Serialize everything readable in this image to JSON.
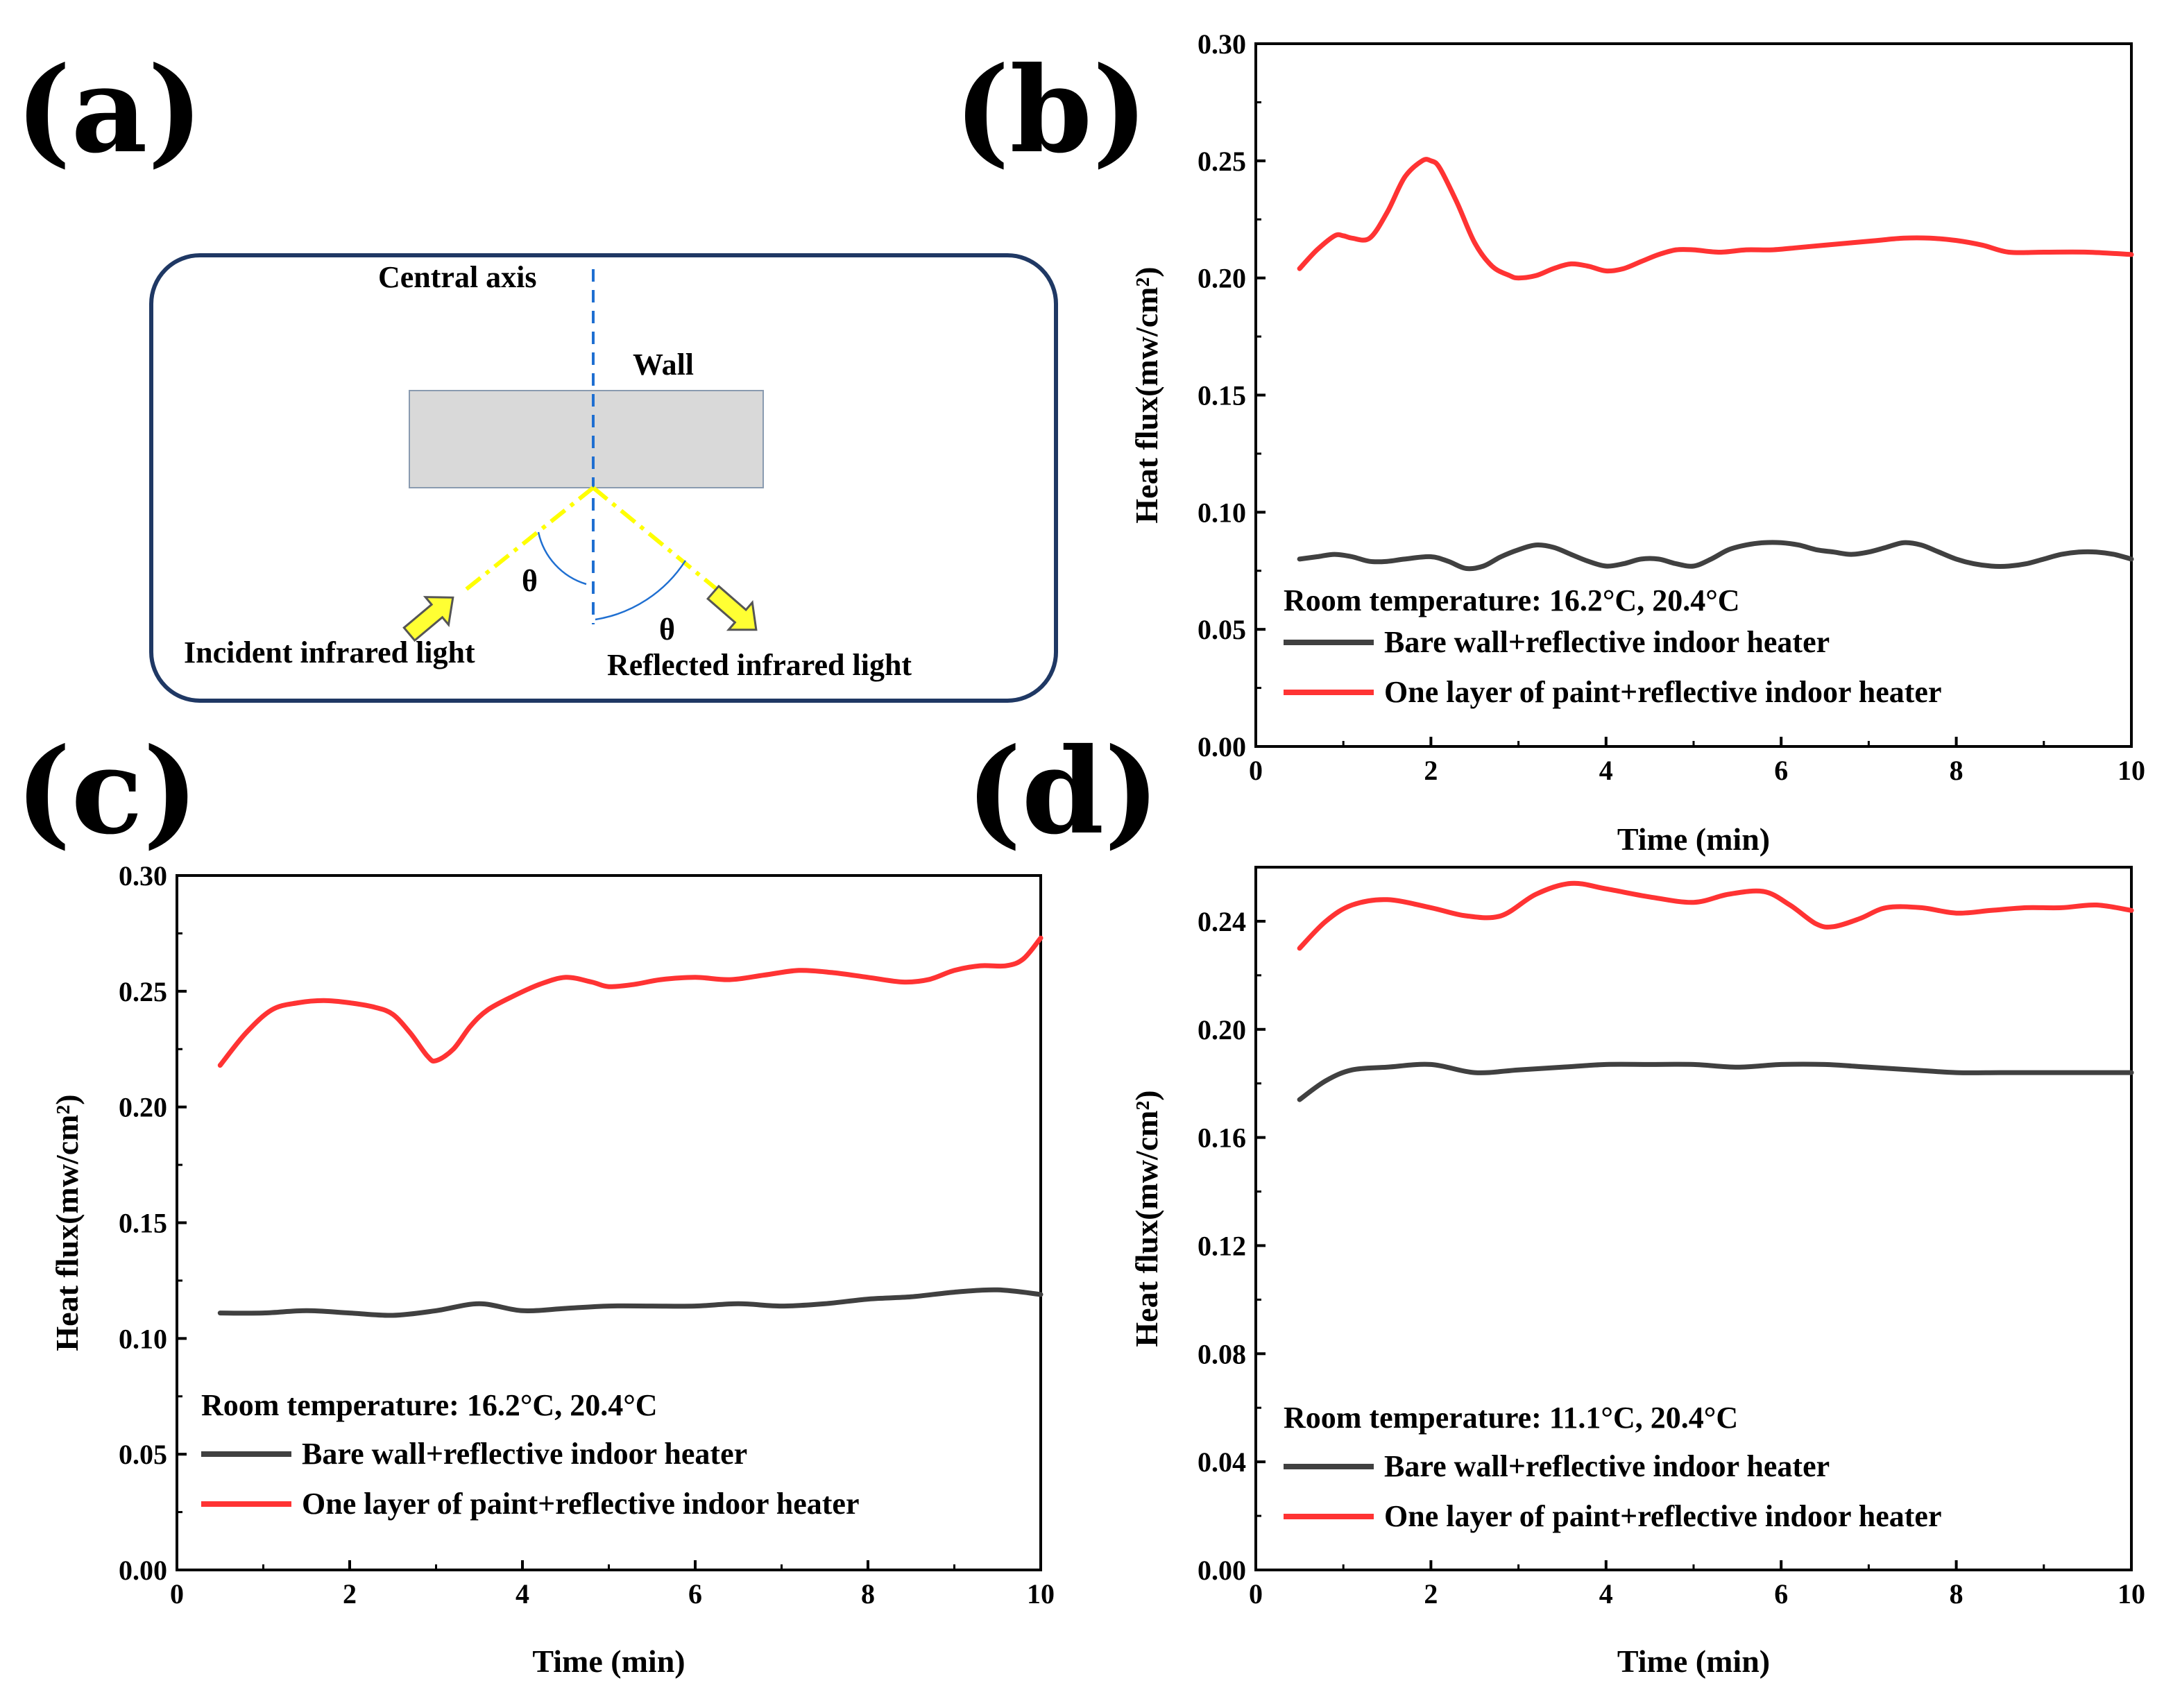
{
  "panel_letters": {
    "a": "(a)",
    "b": "(b)",
    "c": "(c)",
    "d": "(d)"
  },
  "diagram": {
    "central_axis": "Central axis",
    "wall": "Wall",
    "theta": "θ",
    "incident": "Incident infrared light",
    "reflected": "Reflected infrared light",
    "colors": {
      "frame": "#1f3864",
      "wall_fill": "#d9d9d9",
      "axis": "#1f6fd1",
      "ray": "#ffff00",
      "arrow": "#e6e600"
    }
  },
  "chart_data": [
    {
      "id": "b",
      "type": "line",
      "xlabel": "Time (min)",
      "ylabel": "Heat flux(mw/cm²)",
      "xlim": [
        0,
        10
      ],
      "ylim": [
        0,
        0.3
      ],
      "xticks": [
        "0",
        "2",
        "4",
        "6",
        "8",
        "10"
      ],
      "yticks": [
        "0.00",
        "0.05",
        "0.10",
        "0.15",
        "0.20",
        "0.25",
        "0.30"
      ],
      "annotation": "Room temperature: 16.2°C, 20.4°C",
      "series": [
        {
          "name": "Bare wall+reflective indoor heater",
          "color": "#404040",
          "x": [
            0.5,
            0.7,
            0.9,
            1.1,
            1.3,
            1.5,
            1.7,
            2.0,
            2.2,
            2.4,
            2.6,
            2.8,
            3.0,
            3.2,
            3.4,
            3.6,
            3.8,
            4.0,
            4.2,
            4.4,
            4.6,
            4.8,
            5.0,
            5.2,
            5.4,
            5.6,
            5.8,
            6.0,
            6.2,
            6.4,
            6.6,
            6.8,
            7.0,
            7.2,
            7.4,
            7.6,
            7.8,
            8.0,
            8.2,
            8.4,
            8.6,
            8.8,
            9.0,
            9.2,
            9.4,
            9.6,
            9.8,
            10.0
          ],
          "y": [
            0.08,
            0.081,
            0.082,
            0.081,
            0.079,
            0.079,
            0.08,
            0.081,
            0.079,
            0.076,
            0.077,
            0.081,
            0.084,
            0.086,
            0.085,
            0.082,
            0.079,
            0.077,
            0.078,
            0.08,
            0.08,
            0.078,
            0.077,
            0.08,
            0.084,
            0.086,
            0.087,
            0.087,
            0.086,
            0.084,
            0.083,
            0.082,
            0.083,
            0.085,
            0.087,
            0.086,
            0.083,
            0.08,
            0.078,
            0.077,
            0.077,
            0.078,
            0.08,
            0.082,
            0.083,
            0.083,
            0.082,
            0.08
          ]
        },
        {
          "name": "One layer of paint+reflective indoor heater",
          "color": "#ff3333",
          "x": [
            0.5,
            0.7,
            0.9,
            1.0,
            1.1,
            1.3,
            1.5,
            1.7,
            1.9,
            2.0,
            2.1,
            2.3,
            2.5,
            2.7,
            2.9,
            3.0,
            3.2,
            3.4,
            3.6,
            3.8,
            4.0,
            4.2,
            4.4,
            4.6,
            4.8,
            5.0,
            5.3,
            5.6,
            5.9,
            6.2,
            6.5,
            6.8,
            7.1,
            7.4,
            7.7,
            8.0,
            8.3,
            8.6,
            9.0,
            9.5,
            10.0
          ],
          "y": [
            0.204,
            0.212,
            0.218,
            0.218,
            0.217,
            0.217,
            0.228,
            0.243,
            0.25,
            0.25,
            0.247,
            0.232,
            0.215,
            0.205,
            0.201,
            0.2,
            0.201,
            0.204,
            0.206,
            0.205,
            0.203,
            0.204,
            0.207,
            0.21,
            0.212,
            0.212,
            0.211,
            0.212,
            0.212,
            0.213,
            0.214,
            0.215,
            0.216,
            0.217,
            0.217,
            0.216,
            0.214,
            0.211,
            0.211,
            0.211,
            0.21
          ]
        }
      ]
    },
    {
      "id": "c",
      "type": "line",
      "xlabel": "Time (min)",
      "ylabel": "Heat flux(mw/cm²)",
      "xlim": [
        0,
        10
      ],
      "ylim": [
        0,
        0.3
      ],
      "xticks": [
        "0",
        "2",
        "4",
        "6",
        "8",
        "10"
      ],
      "yticks": [
        "0.00",
        "0.05",
        "0.10",
        "0.15",
        "0.20",
        "0.25",
        "0.30"
      ],
      "annotation": "Room temperature: 16.2°C, 20.4°C",
      "series": [
        {
          "name": "Bare wall+reflective indoor heater",
          "color": "#404040",
          "x": [
            0.5,
            1.0,
            1.5,
            2.0,
            2.5,
            3.0,
            3.5,
            4.0,
            4.5,
            5.0,
            5.5,
            6.0,
            6.5,
            7.0,
            7.5,
            8.0,
            8.5,
            9.0,
            9.5,
            10.0
          ],
          "y": [
            0.111,
            0.111,
            0.112,
            0.111,
            0.11,
            0.112,
            0.115,
            0.112,
            0.113,
            0.114,
            0.114,
            0.114,
            0.115,
            0.114,
            0.115,
            0.117,
            0.118,
            0.12,
            0.121,
            0.119
          ]
        },
        {
          "name": "One layer of paint+reflective indoor heater",
          "color": "#ff3333",
          "x": [
            0.5,
            0.8,
            1.1,
            1.4,
            1.7,
            2.0,
            2.3,
            2.5,
            2.7,
            2.9,
            3.0,
            3.2,
            3.4,
            3.6,
            3.9,
            4.2,
            4.5,
            4.8,
            5.0,
            5.3,
            5.6,
            6.0,
            6.4,
            6.8,
            7.2,
            7.6,
            8.0,
            8.4,
            8.7,
            9.0,
            9.3,
            9.6,
            9.8,
            10.0
          ],
          "y": [
            0.218,
            0.232,
            0.242,
            0.245,
            0.246,
            0.245,
            0.243,
            0.24,
            0.232,
            0.222,
            0.22,
            0.225,
            0.235,
            0.242,
            0.248,
            0.253,
            0.256,
            0.254,
            0.252,
            0.253,
            0.255,
            0.256,
            0.255,
            0.257,
            0.259,
            0.258,
            0.256,
            0.254,
            0.255,
            0.259,
            0.261,
            0.261,
            0.264,
            0.273
          ]
        }
      ]
    },
    {
      "id": "d",
      "type": "line",
      "xlabel": "Time (min)",
      "ylabel": "Heat flux(mw/cm²)",
      "xlim": [
        0,
        10
      ],
      "ylim": [
        0,
        0.26
      ],
      "xticks": [
        "0",
        "2",
        "4",
        "6",
        "8",
        "10"
      ],
      "yticks": [
        "0.00",
        "0.04",
        "0.08",
        "0.12",
        "0.16",
        "0.20",
        "0.24"
      ],
      "annotation": "Room temperature: 11.1°C, 20.4°C",
      "series": [
        {
          "name": "Bare wall+reflective indoor heater",
          "color": "#404040",
          "x": [
            0.5,
            0.8,
            1.1,
            1.5,
            2.0,
            2.5,
            3.0,
            3.5,
            4.0,
            4.5,
            5.0,
            5.5,
            6.0,
            6.5,
            7.0,
            7.5,
            8.0,
            8.5,
            9.0,
            9.5,
            10.0
          ],
          "y": [
            0.174,
            0.181,
            0.185,
            0.186,
            0.187,
            0.184,
            0.185,
            0.186,
            0.187,
            0.187,
            0.187,
            0.186,
            0.187,
            0.187,
            0.186,
            0.185,
            0.184,
            0.184,
            0.184,
            0.184,
            0.184
          ]
        },
        {
          "name": "One layer of paint+reflective indoor heater",
          "color": "#ff3333",
          "x": [
            0.5,
            0.8,
            1.1,
            1.5,
            2.0,
            2.4,
            2.8,
            3.2,
            3.6,
            4.0,
            4.5,
            5.0,
            5.4,
            5.8,
            6.1,
            6.4,
            6.6,
            6.9,
            7.2,
            7.6,
            8.0,
            8.4,
            8.8,
            9.2,
            9.6,
            10.0
          ],
          "y": [
            0.23,
            0.24,
            0.246,
            0.248,
            0.245,
            0.242,
            0.242,
            0.25,
            0.254,
            0.252,
            0.249,
            0.247,
            0.25,
            0.251,
            0.246,
            0.239,
            0.238,
            0.241,
            0.245,
            0.245,
            0.243,
            0.244,
            0.245,
            0.245,
            0.246,
            0.244
          ]
        }
      ]
    }
  ]
}
